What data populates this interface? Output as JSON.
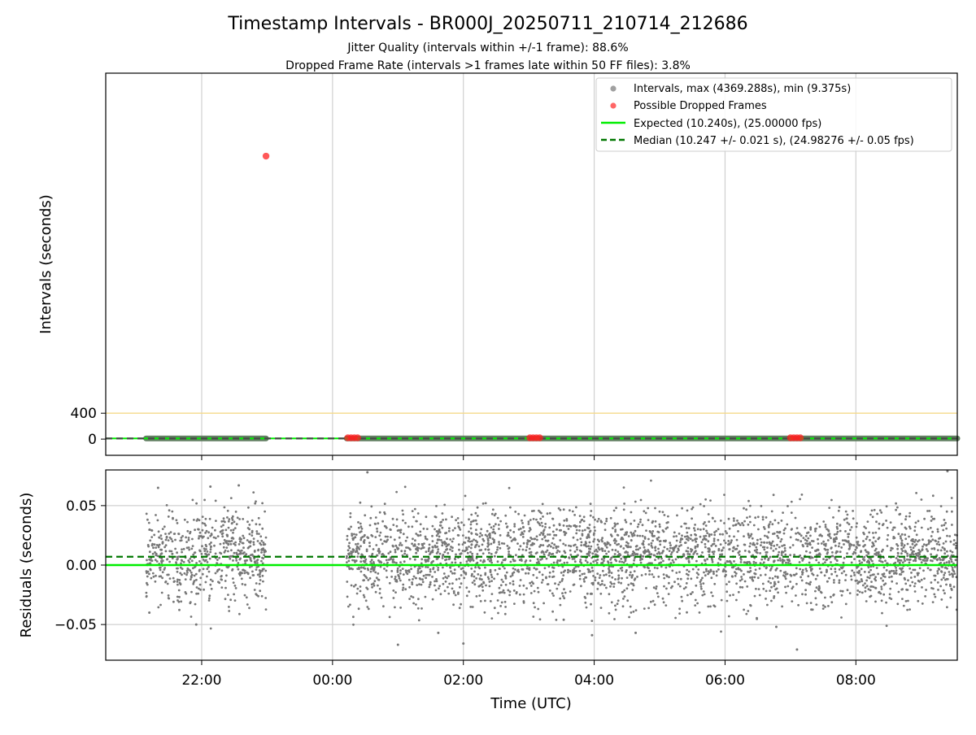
{
  "figure": {
    "title": "Timestamp Intervals - BR000J_20250711_210714_212686",
    "subtitle_1": "Jitter Quality (intervals within +/-1 frame): 88.6%",
    "subtitle_2": "Dropped Frame Rate (intervals >1 frames late within 50 FF files): 3.8%"
  },
  "chart_data": [
    {
      "type": "scatter",
      "panel": "top",
      "ylabel": "Intervals (seconds)",
      "xlim": [
        "2025-07-11T20:32",
        "2025-07-12T09:33"
      ],
      "ylim": [
        -250,
        5650
      ],
      "yticks": [
        0,
        400
      ],
      "ytick_labels": [
        "0",
        "400"
      ],
      "grid": "vertical",
      "legend": {
        "placement": "top-right",
        "entries": [
          {
            "label": "Intervals, max (4369.288s), min (9.375s)",
            "marker": "circle",
            "color": "#a0a0a0"
          },
          {
            "label": "Possible Dropped Frames",
            "marker": "circle",
            "color": "#ff4040"
          },
          {
            "label": "Expected (10.240s), (25.00000 fps)",
            "line": "solid",
            "color": "#00ee00"
          },
          {
            "label": "Median (10.247 +/- 0.021 s), (24.98276 +/- 0.05 fps)",
            "line": "dashed",
            "color": "#007700"
          }
        ]
      },
      "series": [
        {
          "name": "Intervals, max (4369.288s), min (9.375s)",
          "segments": [
            {
              "start": "2025-07-11T21:09",
              "end": "2025-07-11T22:59",
              "y": 10.24
            },
            {
              "start": "2025-07-12T00:13",
              "end": "2025-07-12T09:33",
              "y": 10.24
            }
          ]
        },
        {
          "name": "Possible Dropped Frames",
          "points": [
            {
              "x": "2025-07-11T22:59",
              "y": 4369.288
            },
            {
              "x": "2025-07-12T00:14",
              "y": 20
            },
            {
              "x": "2025-07-12T00:17",
              "y": 20
            },
            {
              "x": "2025-07-12T00:20",
              "y": 20
            },
            {
              "x": "2025-07-12T00:23",
              "y": 20
            },
            {
              "x": "2025-07-12T03:01",
              "y": 20
            },
            {
              "x": "2025-07-12T03:04",
              "y": 20
            },
            {
              "x": "2025-07-12T03:07",
              "y": 20
            },
            {
              "x": "2025-07-12T03:10",
              "y": 20
            },
            {
              "x": "2025-07-12T07:00",
              "y": 20
            },
            {
              "x": "2025-07-12T07:03",
              "y": 20
            },
            {
              "x": "2025-07-12T07:06",
              "y": 20
            },
            {
              "x": "2025-07-12T07:09",
              "y": 20
            }
          ]
        },
        {
          "name": "Expected (10.240s), (25.00000 fps)",
          "y": 10.24
        },
        {
          "name": "Median (10.247 +/- 0.021 s), (24.98276 +/- 0.05 fps)",
          "y": 10.247
        }
      ],
      "reference_lines": [
        {
          "y": 400,
          "color": "#f5d98a"
        }
      ]
    },
    {
      "type": "scatter",
      "panel": "bottom",
      "xlabel": "Time (UTC)",
      "ylabel": "Residuals (seconds)",
      "xlim": [
        "2025-07-11T20:32",
        "2025-07-12T09:33"
      ],
      "ylim": [
        -0.08,
        0.08
      ],
      "xticks": [
        "2025-07-11T22:00",
        "2025-07-12T00:00",
        "2025-07-12T02:00",
        "2025-07-12T04:00",
        "2025-07-12T06:00",
        "2025-07-12T08:00"
      ],
      "xtick_labels": [
        "22:00",
        "00:00",
        "02:00",
        "04:00",
        "06:00",
        "08:00"
      ],
      "yticks": [
        -0.05,
        0.0,
        0.05
      ],
      "ytick_labels": [
        "−0.05",
        "0.00",
        "0.05"
      ],
      "grid": "both",
      "series": [
        {
          "name": "Residuals",
          "color": "#777777",
          "sample_points": [
            {
              "x": "2025-07-11T21:12",
              "y": -0.04
            },
            {
              "x": "2025-07-11T21:20",
              "y": 0.065
            },
            {
              "x": "2025-07-11T21:55",
              "y": -0.05
            },
            {
              "x": "2025-07-11T22:08",
              "y": 0.066
            },
            {
              "x": "2025-07-11T22:34",
              "y": 0.067
            },
            {
              "x": "2025-07-12T00:32",
              "y": 0.078
            },
            {
              "x": "2025-07-12T01:00",
              "y": -0.067
            },
            {
              "x": "2025-07-12T01:37",
              "y": -0.057
            },
            {
              "x": "2025-07-12T02:00",
              "y": -0.066
            },
            {
              "x": "2025-07-12T03:32",
              "y": -0.046
            },
            {
              "x": "2025-07-12T03:58",
              "y": -0.059
            },
            {
              "x": "2025-07-12T04:38",
              "y": -0.057
            },
            {
              "x": "2025-07-12T06:47",
              "y": -0.052
            },
            {
              "x": "2025-07-12T07:06",
              "y": -0.071
            },
            {
              "x": "2025-07-12T09:24",
              "y": 0.079
            }
          ]
        },
        {
          "name": "Expected",
          "y": 0.0,
          "color": "#00ee00"
        },
        {
          "name": "Median",
          "y": 0.007,
          "color": "#007700"
        }
      ]
    }
  ]
}
